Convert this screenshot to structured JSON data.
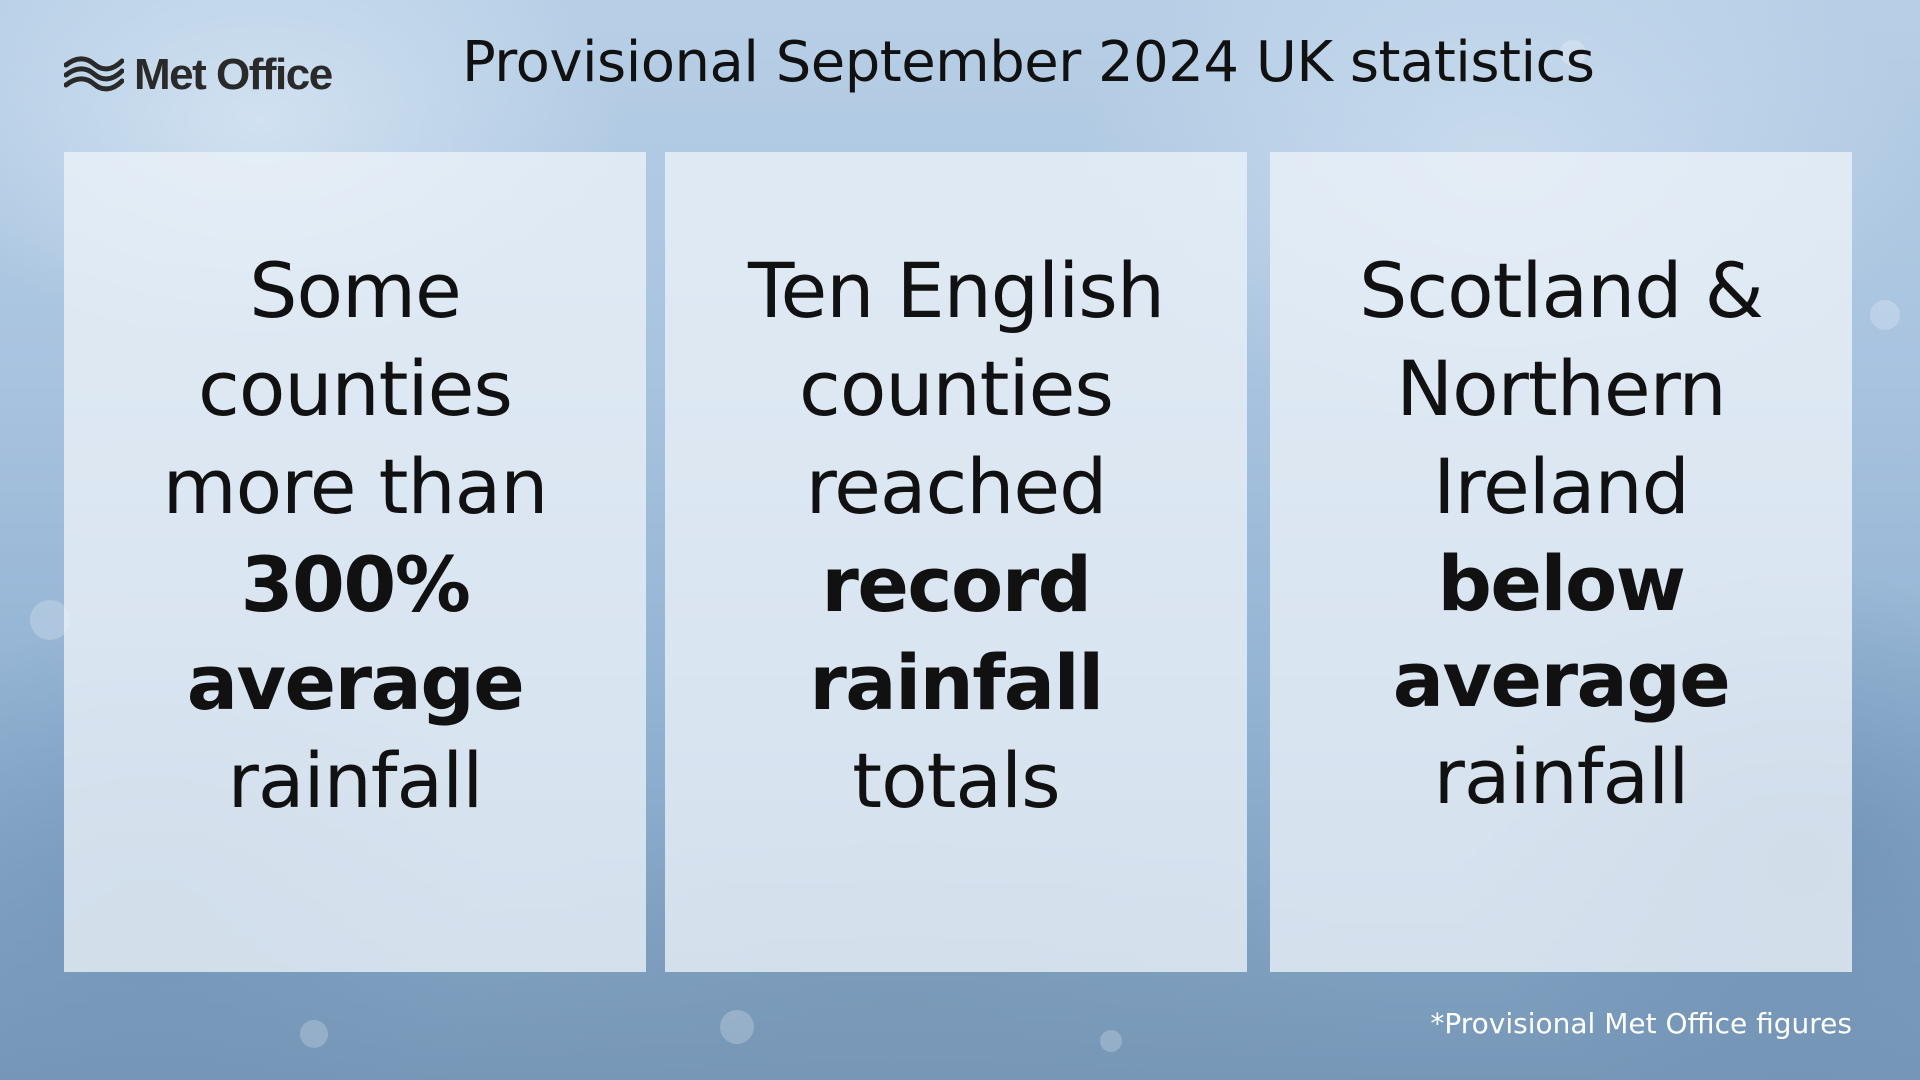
{
  "header": {
    "logo_text": "Met Office",
    "title": "Provisional September 2024 UK statistics"
  },
  "panels": [
    {
      "lines": [
        {
          "text": "Some",
          "bold": false
        },
        {
          "text": "counties",
          "bold": false
        },
        {
          "text": "more than",
          "bold": false
        },
        {
          "text": "300%",
          "bold": true
        },
        {
          "text": "average",
          "bold": true
        },
        {
          "text": "rainfall",
          "bold": false
        }
      ]
    },
    {
      "lines": [
        {
          "text": "Ten English",
          "bold": false
        },
        {
          "text": "counties",
          "bold": false
        },
        {
          "text": "reached",
          "bold": false
        },
        {
          "text": "record",
          "bold": true
        },
        {
          "text": "rainfall",
          "bold": true
        },
        {
          "text": "totals",
          "bold": false
        }
      ]
    },
    {
      "lines": [
        {
          "text": "Scotland &",
          "bold": false
        },
        {
          "text": "Northern",
          "bold": false
        },
        {
          "text": "Ireland",
          "bold": false
        },
        {
          "text": "below",
          "bold": true
        },
        {
          "text": "average",
          "bold": true
        },
        {
          "text": "rainfall",
          "bold": false
        }
      ]
    }
  ],
  "footnote": "*Provisional Met Office figures",
  "colors": {
    "text": "#111111",
    "panel": "#ECF2F8",
    "background": "#A8C3DF",
    "footnote": "#FFFFFF"
  }
}
